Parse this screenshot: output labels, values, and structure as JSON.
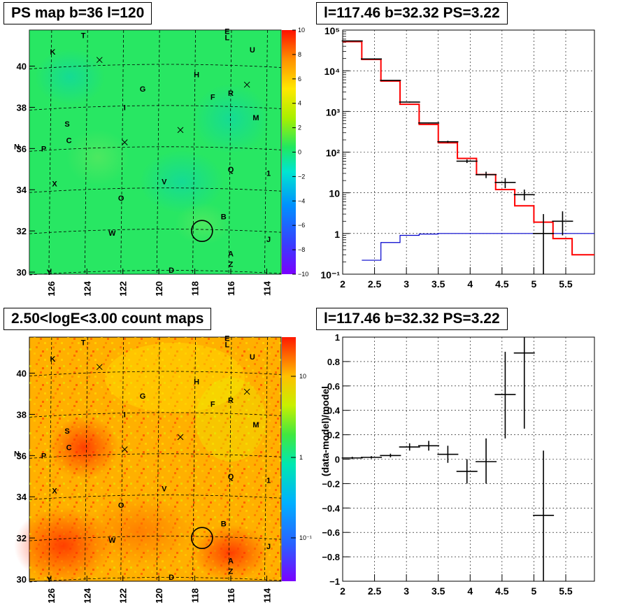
{
  "colors": {
    "red_model": "#ff0000",
    "blue_model": "#0000cc",
    "map_green": "#22e85a"
  },
  "chart_data": [
    {
      "type": "heatmap",
      "title": "PS map b=36 l=120",
      "x_ticks": [
        "126",
        "124",
        "122",
        "120",
        "118",
        "116",
        "114"
      ],
      "y_ticks": [
        "30",
        "32",
        "34",
        "36",
        "38",
        "40"
      ],
      "colorbar_ticks": [
        "10",
        "8",
        "6",
        "4",
        "2",
        "0",
        "−2",
        "−4",
        "−6",
        "−8",
        "−10"
      ],
      "zlim": [
        -10,
        10
      ],
      "markers": [
        {
          "label": "T",
          "l": 124.2,
          "b": 41.5
        },
        {
          "label": "E",
          "l": 116.2,
          "b": 41.7
        },
        {
          "label": "L",
          "l": 116.2,
          "b": 41.4
        },
        {
          "label": "U",
          "l": 114.8,
          "b": 40.8
        },
        {
          "label": "K",
          "l": 125.9,
          "b": 40.7
        },
        {
          "label": "H",
          "l": 117.9,
          "b": 39.6
        },
        {
          "label": "G",
          "l": 120.9,
          "b": 38.9
        },
        {
          "label": "F",
          "l": 117.0,
          "b": 38.5
        },
        {
          "label": "R",
          "l": 116.0,
          "b": 38.7
        },
        {
          "label": "I",
          "l": 121.9,
          "b": 38.0
        },
        {
          "label": "M",
          "l": 114.6,
          "b": 37.5
        },
        {
          "label": "S",
          "l": 125.1,
          "b": 37.2
        },
        {
          "label": "C",
          "l": 125.0,
          "b": 36.4
        },
        {
          "label": "N",
          "l": 127.9,
          "b": 36.1
        },
        {
          "label": "P",
          "l": 126.4,
          "b": 36.0
        },
        {
          "label": "Q",
          "l": 116.0,
          "b": 35.0
        },
        {
          "label": "1",
          "l": 113.9,
          "b": 34.8
        },
        {
          "label": "V",
          "l": 119.7,
          "b": 34.4
        },
        {
          "label": "X",
          "l": 125.8,
          "b": 34.3
        },
        {
          "label": "O",
          "l": 122.1,
          "b": 33.6
        },
        {
          "label": "B",
          "l": 116.4,
          "b": 32.7
        },
        {
          "label": "W",
          "l": 122.6,
          "b": 31.9
        },
        {
          "label": "J",
          "l": 113.9,
          "b": 31.6
        },
        {
          "label": "A",
          "l": 116.0,
          "b": 30.9
        },
        {
          "label": "Z",
          "l": 116.0,
          "b": 30.4
        },
        {
          "label": "D",
          "l": 119.3,
          "b": 30.1
        },
        {
          "label": "Y",
          "l": 126.1,
          "b": 30.0
        }
      ],
      "crosses": [
        {
          "l": 123.3,
          "b": 40.3
        },
        {
          "l": 115.1,
          "b": 39.1
        },
        {
          "l": 118.8,
          "b": 36.9
        },
        {
          "l": 121.9,
          "b": 36.3
        }
      ],
      "circle": {
        "l": 117.6,
        "b": 32.0
      }
    },
    {
      "type": "line",
      "title": "l=117.46 b=32.32 PS=3.22",
      "xlim": [
        2,
        5.95
      ],
      "ylim": [
        0.1,
        100000
      ],
      "log_y": true,
      "x_ticks": [
        "2",
        "2.5",
        "3",
        "3.5",
        "4",
        "4.5",
        "5",
        "5.5"
      ],
      "y_ticks": [
        "10⁻¹",
        "1",
        "10",
        "10²",
        "10³",
        "10⁴",
        "10⁵"
      ],
      "grid": true,
      "series": [
        {
          "style": "step",
          "color": "#ff0000",
          "edges": [
            2,
            2.3,
            2.6,
            2.9,
            3.2,
            3.5,
            3.8,
            4.1,
            4.4,
            4.7,
            5.0,
            5.3,
            5.6,
            5.95
          ],
          "values": [
            52000,
            19000,
            5600,
            1500,
            480,
            170,
            70,
            28,
            12,
            4.8,
            1.9,
            0.75,
            0.3
          ]
        },
        {
          "style": "step",
          "color": "#0000cc",
          "edges": [
            2.3,
            2.6,
            2.9,
            3.2,
            3.5,
            3.8,
            4.1,
            4.4,
            4.7,
            5.0,
            5.3,
            5.6,
            5.95
          ],
          "values": [
            0.22,
            0.6,
            0.9,
            0.97,
            1.0,
            1.0,
            1.0,
            1.0,
            1.0,
            1.0,
            1.0,
            1.0
          ]
        },
        {
          "style": "errorbar",
          "color": "#000000",
          "x": [
            2.15,
            2.45,
            2.75,
            3.05,
            3.35,
            3.65,
            3.95,
            4.25,
            4.55,
            4.85,
            5.15,
            5.45
          ],
          "y": [
            54000,
            19500,
            5800,
            1700,
            520,
            180,
            60,
            28,
            18,
            9,
            1,
            2
          ],
          "ylo": [
            53000,
            19300,
            5700,
            1650,
            505,
            170,
            54,
            23,
            13,
            6.5,
            0.1,
            0.9
          ],
          "yhi": [
            55000,
            19700,
            5900,
            1750,
            535,
            190,
            66,
            33,
            23,
            12,
            3,
            3.5
          ]
        }
      ]
    },
    {
      "type": "heatmap",
      "title": "2.50<logE<3.00 count maps",
      "x_ticks": [
        "126",
        "124",
        "122",
        "120",
        "118",
        "116",
        "114"
      ],
      "y_ticks": [
        "30",
        "32",
        "34",
        "36",
        "38",
        "40"
      ],
      "colorbar_ticks": [
        "10",
        "1",
        "10⁻¹"
      ],
      "log_z": true
    },
    {
      "type": "line",
      "title": "l=117.46 b=32.32 PS=3.22",
      "xlim": [
        2,
        5.95
      ],
      "ylim": [
        -1,
        1
      ],
      "ylabel": "(data-model)/model",
      "x_ticks": [
        "2",
        "2.5",
        "3",
        "3.5",
        "4",
        "4.5",
        "5",
        "5.5"
      ],
      "y_ticks": [
        "−1",
        "−0.8",
        "−0.6",
        "−0.4",
        "−0.2",
        "0",
        "0.2",
        "0.4",
        "0.6",
        "0.8",
        "1"
      ],
      "grid": true,
      "series": [
        {
          "style": "errorbar",
          "color": "#000000",
          "x": [
            2.15,
            2.45,
            2.75,
            3.05,
            3.35,
            3.65,
            3.95,
            4.25,
            4.55,
            4.85,
            5.15
          ],
          "y": [
            0.01,
            0.015,
            0.03,
            0.1,
            0.11,
            0.04,
            -0.1,
            -0.02,
            0.53,
            0.87,
            -0.46
          ],
          "ylo": [
            0.0,
            0.005,
            0.015,
            0.07,
            0.07,
            -0.03,
            -0.2,
            -0.2,
            0.17,
            0.25,
            -1.0
          ],
          "yhi": [
            0.02,
            0.025,
            0.045,
            0.13,
            0.15,
            0.11,
            0.0,
            0.17,
            0.88,
            1.0,
            0.07
          ]
        }
      ]
    }
  ]
}
